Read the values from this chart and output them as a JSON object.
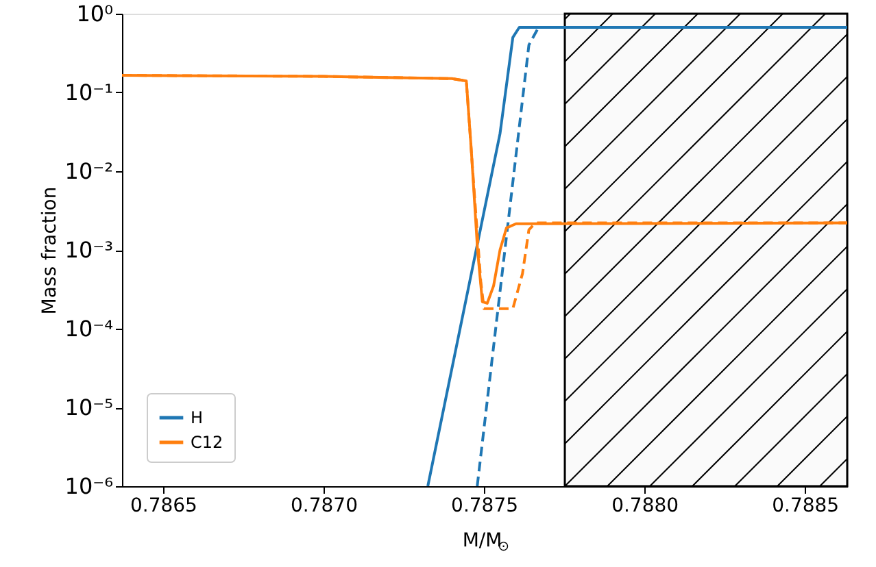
{
  "chart_data": {
    "type": "line",
    "xlabel": "M/M$_{⊙}$",
    "ylabel": "Mass fraction",
    "xlim": [
      0.786372,
      0.788632
    ],
    "xticks": [
      0.7865,
      {
        "value": 0.787,
        "label": "0.7870"
      },
      0.7875,
      {
        "value": 0.788,
        "label": "0.7880"
      },
      0.7885
    ],
    "ylim": [
      1e-06,
      1
    ],
    "yticks": [
      {
        "value": 1e-06,
        "label": "10⁻⁶"
      },
      {
        "value": 1e-05,
        "label": "10⁻⁵"
      },
      {
        "value": 0.0001,
        "label": "10⁻⁴"
      },
      {
        "value": 0.001,
        "label": "10⁻³"
      },
      {
        "value": 0.01,
        "label": "10⁻²"
      },
      {
        "value": 0.1,
        "label": "10⁻¹"
      },
      {
        "value": 1,
        "label": "10⁰"
      }
    ],
    "log": "y",
    "grid": false,
    "legend": "bottom left",
    "marker": "none",
    "bands": [
      {
        "axis": "x",
        "from": 0.787752,
        "to": 0.788632,
        "color": "#000000"
      }
    ],
    "series": [
      {
        "name": "H",
        "color": "#1f77b4",
        "line_style": "solid",
        "x": [
          0.787325,
          0.78755,
          0.78759,
          0.78761,
          0.788632
        ],
        "values": [
          1e-06,
          0.03,
          0.5,
          0.67,
          0.67
        ]
      },
      {
        "color": "#1f77b4",
        "line_style": "dashed",
        "x": [
          0.787479,
          0.78764,
          0.78767,
          0.788632
        ],
        "values": [
          1e-06,
          0.4,
          0.67,
          0.67
        ]
      },
      {
        "name": "C12",
        "color": "#ff7f0e",
        "line_style": "solid",
        "x": [
          0.786372,
          0.787,
          0.7874,
          0.787445,
          0.78746,
          0.78748,
          0.787495,
          0.78751,
          0.78753,
          0.78755,
          0.78757,
          0.7876,
          0.788632
        ],
        "values": [
          0.165,
          0.16,
          0.15,
          0.14,
          0.02,
          0.001,
          0.00022,
          0.00021,
          0.00035,
          0.001,
          0.0019,
          0.00215,
          0.0022
        ]
      },
      {
        "color": "#ff7f0e",
        "line_style": "dashed",
        "x": [
          0.786372,
          0.787,
          0.7874,
          0.787445,
          0.787465,
          0.78749,
          0.7875,
          0.78759,
          0.78762,
          0.78764,
          0.78766,
          0.788632
        ],
        "values": [
          0.165,
          0.16,
          0.15,
          0.14,
          0.01,
          0.0004,
          0.00018,
          0.00018,
          0.0005,
          0.0018,
          0.0022,
          0.0022
        ]
      }
    ]
  }
}
